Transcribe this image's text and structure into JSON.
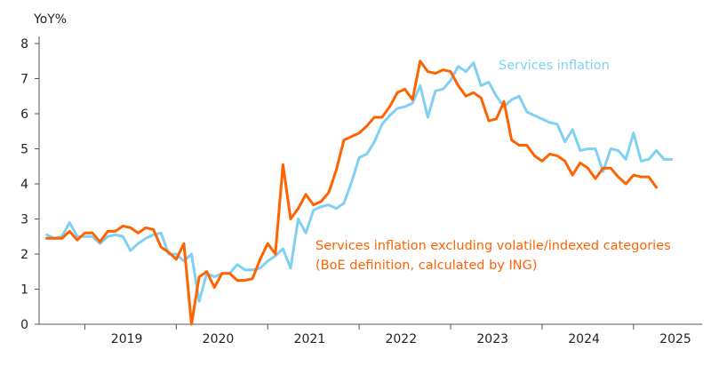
{
  "chart_data": {
    "type": "line",
    "ylabel_unit": "YoY%",
    "ylim": [
      0,
      8
    ],
    "yticks": [
      0,
      1,
      2,
      3,
      4,
      5,
      6,
      7,
      8
    ],
    "xticks": [
      "2019",
      "2020",
      "2021",
      "2022",
      "2023",
      "2024",
      "2025"
    ],
    "x_range": [
      "2018-07",
      "2025-10"
    ],
    "grid": false,
    "colors": {
      "services": "#7fd0f2",
      "excluding": "#ff6200",
      "axis": "#555555"
    },
    "series": [
      {
        "key": "services",
        "name": "Services inflation",
        "start": "2018-08",
        "values": [
          2.55,
          2.45,
          2.5,
          2.9,
          2.5,
          2.5,
          2.5,
          2.3,
          2.5,
          2.55,
          2.5,
          2.1,
          2.3,
          2.45,
          2.55,
          2.6,
          2.0,
          2.0,
          1.8,
          2.0,
          0.65,
          1.45,
          1.35,
          1.45,
          1.45,
          1.7,
          1.55,
          1.55,
          1.6,
          1.8,
          1.95,
          2.15,
          1.6,
          3.0,
          2.6,
          3.25,
          3.35,
          3.4,
          3.3,
          3.45,
          4.05,
          4.75,
          4.85,
          5.2,
          5.7,
          5.95,
          6.15,
          6.2,
          6.3,
          6.8,
          5.9,
          6.65,
          6.7,
          6.95,
          7.35,
          7.2,
          7.45,
          6.8,
          6.9,
          6.5,
          6.2,
          6.4,
          6.5,
          6.05,
          5.95,
          5.85,
          5.75,
          5.7,
          5.2,
          5.55,
          4.95,
          5.0,
          5.0,
          4.35,
          5.0,
          4.95,
          4.7,
          5.45,
          4.65,
          4.7,
          4.95,
          4.7,
          4.7
        ]
      },
      {
        "key": "excluding",
        "name": "Services inflation excluding volatile/indexed categories",
        "start": "2018-08",
        "values": [
          2.45,
          2.45,
          2.45,
          2.65,
          2.4,
          2.6,
          2.6,
          2.35,
          2.65,
          2.65,
          2.8,
          2.75,
          2.6,
          2.75,
          2.7,
          2.2,
          2.05,
          1.85,
          2.3,
          0.0,
          1.35,
          1.5,
          1.05,
          1.45,
          1.45,
          1.25,
          1.25,
          1.3,
          1.85,
          2.3,
          2.0,
          4.55,
          3.0,
          3.3,
          3.7,
          3.4,
          3.5,
          3.75,
          4.4,
          5.25,
          5.35,
          5.45,
          5.65,
          5.9,
          5.9,
          6.2,
          6.6,
          6.7,
          6.4,
          7.5,
          7.2,
          7.15,
          7.25,
          7.2,
          6.8,
          6.5,
          6.6,
          6.45,
          5.8,
          5.85,
          6.35,
          5.25,
          5.1,
          5.1,
          4.8,
          4.65,
          4.85,
          4.8,
          4.65,
          4.25,
          4.6,
          4.45,
          4.15,
          4.45,
          4.45,
          4.2,
          4.0,
          4.25,
          4.2,
          4.2,
          3.9
        ]
      }
    ],
    "annotations": {
      "services": "Services inflation",
      "excluding_line1": "Services inflation excluding volatile/indexed categories",
      "excluding_line2": "(BoE definition, calculated by ING)"
    }
  }
}
